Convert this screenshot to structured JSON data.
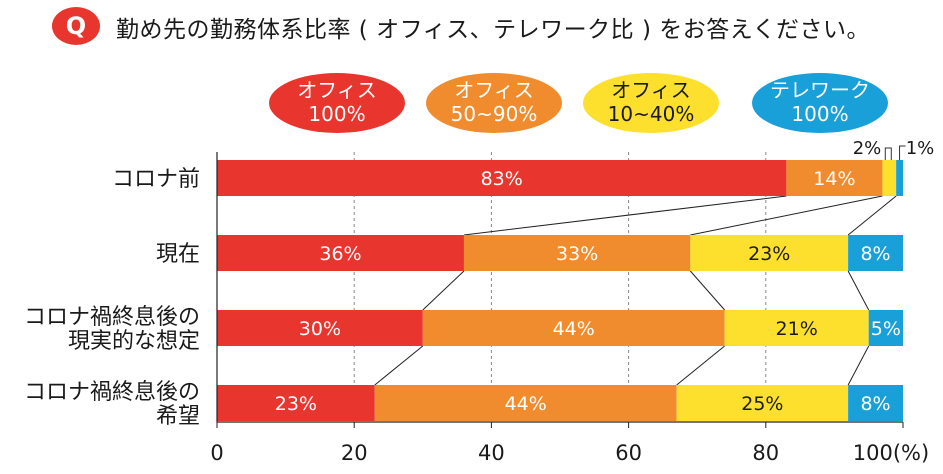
{
  "question": {
    "badge": "Q",
    "text": "勤め先の勤務体系比率 ( オフィス、テレワーク比 ) をお答えください。"
  },
  "chart_data": {
    "type": "bar",
    "orientation": "horizontal",
    "stacked": true,
    "title": "",
    "xlabel": "",
    "ylabel": "",
    "xlim": [
      0,
      100
    ],
    "x_ticks": [
      "0",
      "20",
      "40",
      "60",
      "80",
      "100(%)"
    ],
    "grid": true,
    "legend_position": "top",
    "categories": [
      [
        "コロナ前"
      ],
      [
        "現在"
      ],
      [
        "コロナ禍終息後の",
        "現実的な想定"
      ],
      [
        "コロナ禍終息後の",
        "希望"
      ]
    ],
    "series": [
      {
        "name": [
          "オフィス",
          "100%"
        ],
        "color": "#e8362e",
        "values": [
          83,
          36,
          30,
          23
        ],
        "labels": [
          "83%",
          "36%",
          "30%",
          "23%"
        ]
      },
      {
        "name": [
          "オフィス",
          "50~90%"
        ],
        "color": "#f08c2e",
        "values": [
          14,
          33,
          44,
          44
        ],
        "labels": [
          "14%",
          "33%",
          "44%",
          "44%"
        ]
      },
      {
        "name": [
          "オフィス",
          "10~40%"
        ],
        "color": "#fde02e",
        "values": [
          2,
          23,
          21,
          25
        ],
        "labels": [
          "2%",
          "23%",
          "21%",
          "25%"
        ]
      },
      {
        "name": [
          "テレワーク",
          "100%"
        ],
        "color": "#1aa0d8",
        "values": [
          1,
          8,
          5,
          8
        ],
        "labels": [
          "1%",
          "8%",
          "5%",
          "8%"
        ]
      }
    ]
  }
}
